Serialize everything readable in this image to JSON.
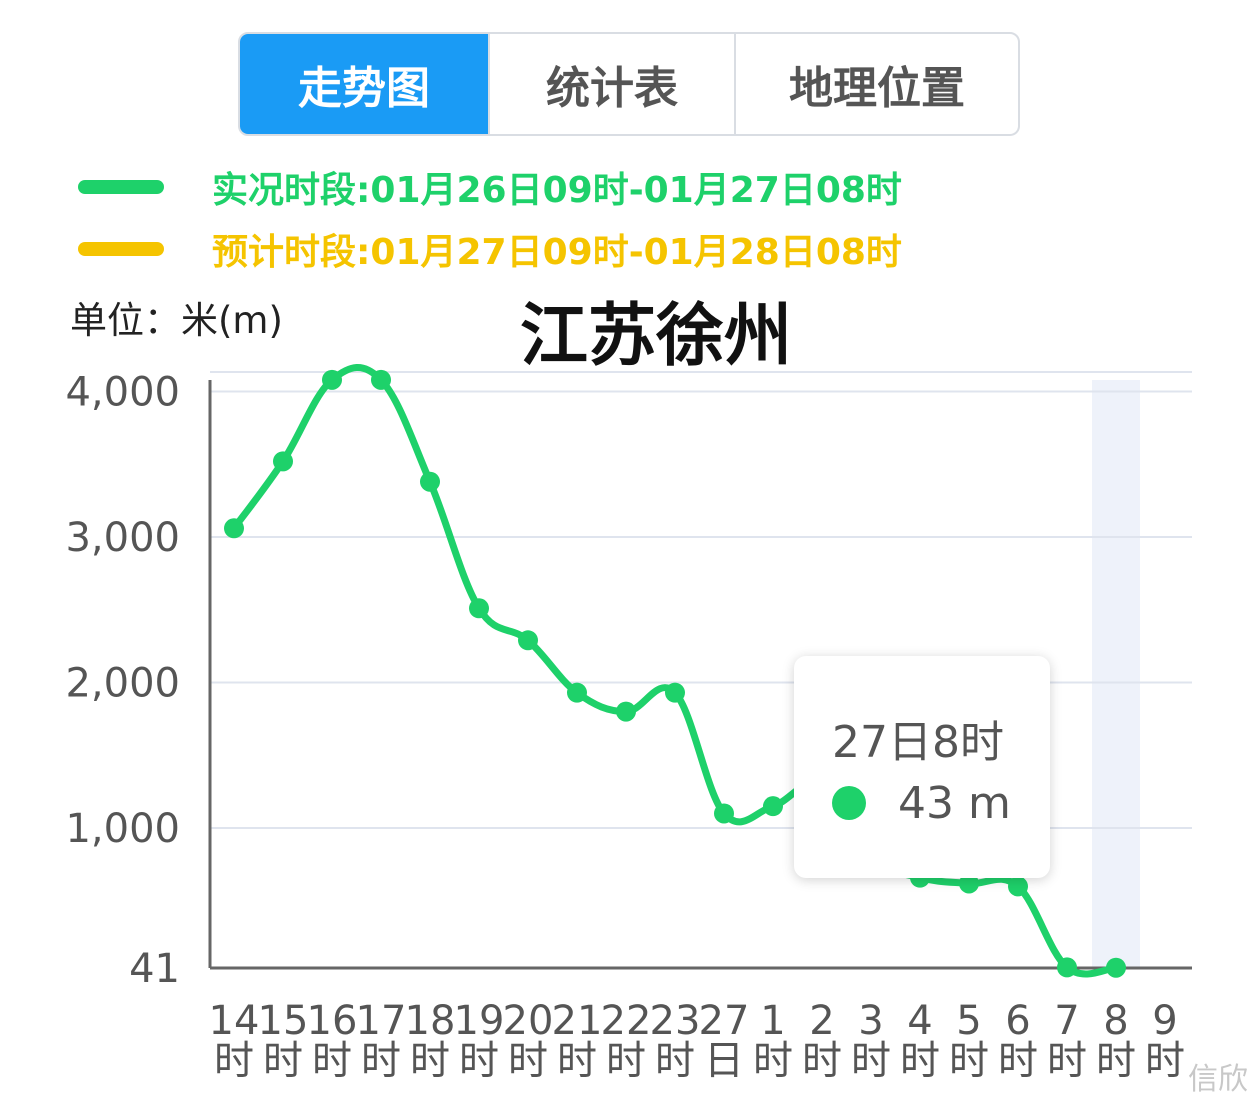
{
  "tabs": [
    {
      "label": "走势图",
      "active": true
    },
    {
      "label": "统计表",
      "active": false
    },
    {
      "label": "地理位置",
      "active": false
    }
  ],
  "legend": [
    {
      "label": "实况时段:01月26日09时-01月27日08时",
      "color": "#1ed16a"
    },
    {
      "label": "预计时段:01月27日09时-01月28日08时",
      "color": "#f5c400"
    }
  ],
  "unit_label": "单位：米(m)",
  "tooltip": {
    "title": "27日8时",
    "value": "43 m",
    "dot_color": "#1ed16a"
  },
  "watermark": "信欣",
  "chart_data": {
    "type": "line",
    "title": "江苏徐州",
    "ylabel": "单位：米(m)",
    "xlabel": "",
    "ylim": [
      41,
      4000
    ],
    "yticks": [
      "41",
      "1,000",
      "2,000",
      "3,000",
      "4,000"
    ],
    "categories": [
      [
        "14",
        "时"
      ],
      [
        "15",
        "时"
      ],
      [
        "16",
        "时"
      ],
      [
        "17",
        "时"
      ],
      [
        "18",
        "时"
      ],
      [
        "19",
        "时"
      ],
      [
        "20",
        "时"
      ],
      [
        "21",
        "时"
      ],
      [
        "22",
        "时"
      ],
      [
        "23",
        "时"
      ],
      [
        "27",
        "日"
      ],
      [
        "1",
        "时"
      ],
      [
        "2",
        "时"
      ],
      [
        "3",
        "时"
      ],
      [
        "4",
        "时"
      ],
      [
        "5",
        "时"
      ],
      [
        "6",
        "时"
      ],
      [
        "7",
        "时"
      ],
      [
        "8",
        "时"
      ],
      [
        "9",
        "时"
      ]
    ],
    "series": [
      {
        "color": "#1ed16a",
        "values": [
          3060,
          3520,
          4080,
          4080,
          3380,
          2510,
          2290,
          1930,
          1800,
          1930,
          1100,
          1150,
          1300,
          800,
          660,
          620,
          600,
          45,
          43,
          null
        ]
      }
    ],
    "highlight_index": 18,
    "grid": true
  }
}
